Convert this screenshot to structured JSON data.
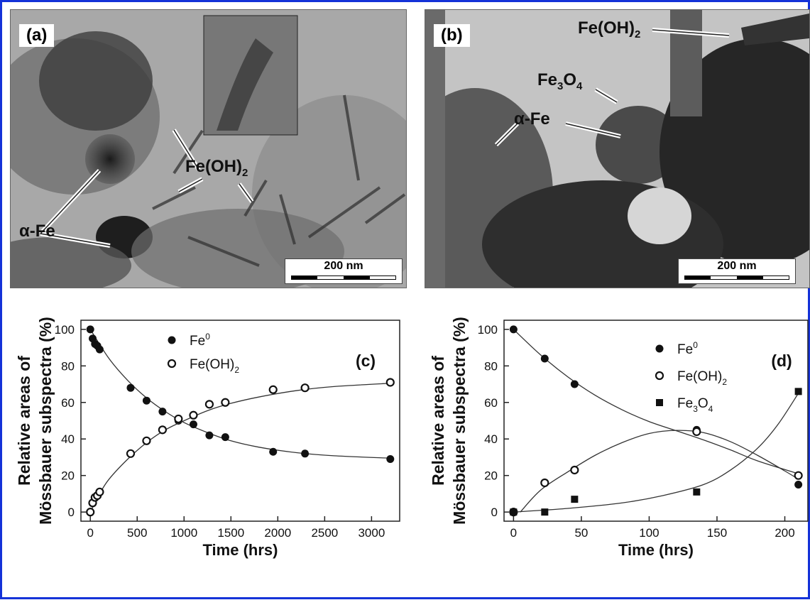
{
  "panels": {
    "a": {
      "tag": "(a)",
      "label_alpha": "α-Fe",
      "label_feoh_main": "Fe(OH)",
      "label_feoh_sub": "2",
      "scale": "200 nm"
    },
    "b": {
      "tag": "(b)",
      "label_feoh_main": "Fe(OH)",
      "label_feoh_sub": "2",
      "label_fe3o4_a": "Fe",
      "label_fe3o4_b": "3",
      "label_fe3o4_c": "O",
      "label_fe3o4_d": "4",
      "label_alpha": "α-Fe",
      "scale": "200 nm"
    }
  },
  "chart_data": [
    {
      "panel": "(c)",
      "type": "scatter",
      "xlabel": "Time (hrs)",
      "ylabel_line1": "Relative areas of",
      "ylabel_line2": "Mössbauer subspectra (%)",
      "xlim": [
        -100,
        3300
      ],
      "ylim": [
        -5,
        105
      ],
      "xticks": [
        0,
        500,
        1000,
        1500,
        2000,
        2500,
        3000
      ],
      "yticks": [
        0,
        20,
        40,
        60,
        80,
        100
      ],
      "legend_position": "top-right",
      "series": [
        {
          "name": "Fe",
          "name_sup": "0",
          "marker": "filled-circle",
          "x": [
            0,
            25,
            50,
            75,
            100,
            430,
            600,
            770,
            940,
            1100,
            1270,
            1440,
            1950,
            2290,
            3200
          ],
          "y": [
            100,
            95,
            92,
            91,
            89,
            68,
            61,
            55,
            50,
            48,
            42,
            41,
            33,
            32,
            29
          ],
          "fit": [
            [
              0,
              100
            ],
            [
              200,
              84
            ],
            [
              400,
              72
            ],
            [
              600,
              62.5
            ],
            [
              800,
              55
            ],
            [
              1000,
              49
            ],
            [
              1250,
              43.5
            ],
            [
              1500,
              39
            ],
            [
              1800,
              35.5
            ],
            [
              2200,
              32.5
            ],
            [
              2600,
              30.8
            ],
            [
              3200,
              29.5
            ]
          ]
        },
        {
          "name": "Fe(OH)",
          "name_sub": "2",
          "marker": "open-circle",
          "x": [
            0,
            25,
            50,
            75,
            100,
            430,
            600,
            770,
            940,
            1100,
            1270,
            1440,
            1950,
            2290,
            3200
          ],
          "y": [
            0,
            5,
            8,
            9,
            11,
            32,
            39,
            45,
            51,
            53,
            59,
            60,
            67,
            68,
            71
          ],
          "fit": [
            [
              0,
              0
            ],
            [
              100,
              10
            ],
            [
              200,
              18
            ],
            [
              400,
              29
            ],
            [
              600,
              38
            ],
            [
              800,
              45
            ],
            [
              1000,
              50
            ],
            [
              1250,
              55.5
            ],
            [
              1500,
              59.5
            ],
            [
              1800,
              63
            ],
            [
              2200,
              66.5
            ],
            [
              2600,
              68.7
            ],
            [
              3200,
              70.5
            ]
          ]
        }
      ]
    },
    {
      "panel": "(d)",
      "type": "scatter",
      "xlabel": "Time (hrs)",
      "ylabel_line1": "Relative areas of",
      "ylabel_line2": "Mössbauer subspectra (%)",
      "xlim": [
        -7,
        217
      ],
      "ylim": [
        -5,
        105
      ],
      "xticks": [
        0,
        50,
        100,
        150,
        200
      ],
      "yticks": [
        0,
        20,
        40,
        60,
        80,
        100
      ],
      "legend_position": "top-right",
      "series": [
        {
          "name": "Fe",
          "name_sup": "0",
          "marker": "filled-circle",
          "x": [
            0,
            23,
            45,
            135,
            210
          ],
          "y": [
            100,
            84,
            70,
            45,
            15
          ],
          "fit": [
            [
              0,
              100
            ],
            [
              20,
              86
            ],
            [
              40,
              74
            ],
            [
              60,
              64
            ],
            [
              80,
              56
            ],
            [
              100,
              49.5
            ],
            [
              120,
              44.5
            ],
            [
              140,
              39.5
            ],
            [
              160,
              34
            ],
            [
              180,
              28
            ],
            [
              210,
              21
            ]
          ]
        },
        {
          "name": "Fe(OH)",
          "name_sub": "2",
          "marker": "open-circle",
          "x": [
            0,
            23,
            45,
            135,
            210
          ],
          "y": [
            0,
            16,
            23,
            44,
            20
          ],
          "fit": [
            [
              5,
              0
            ],
            [
              20,
              12
            ],
            [
              40,
              22
            ],
            [
              60,
              31
            ],
            [
              80,
              38
            ],
            [
              100,
              43
            ],
            [
              120,
              44.7
            ],
            [
              140,
              43.5
            ],
            [
              160,
              38.5
            ],
            [
              180,
              31
            ],
            [
              200,
              22.5
            ],
            [
              210,
              18
            ]
          ]
        },
        {
          "name": "Fe",
          "name_sub": "3",
          "name_mid": "O",
          "name_sub2": "4",
          "marker": "filled-square",
          "x": [
            0,
            23,
            45,
            135,
            210
          ],
          "y": [
            0,
            0,
            7,
            11,
            66
          ],
          "fit": [
            [
              0,
              0
            ],
            [
              40,
              2
            ],
            [
              80,
              5
            ],
            [
              110,
              9
            ],
            [
              140,
              15
            ],
            [
              160,
              23
            ],
            [
              180,
              35
            ],
            [
              195,
              48
            ],
            [
              210,
              65
            ]
          ]
        }
      ]
    }
  ]
}
